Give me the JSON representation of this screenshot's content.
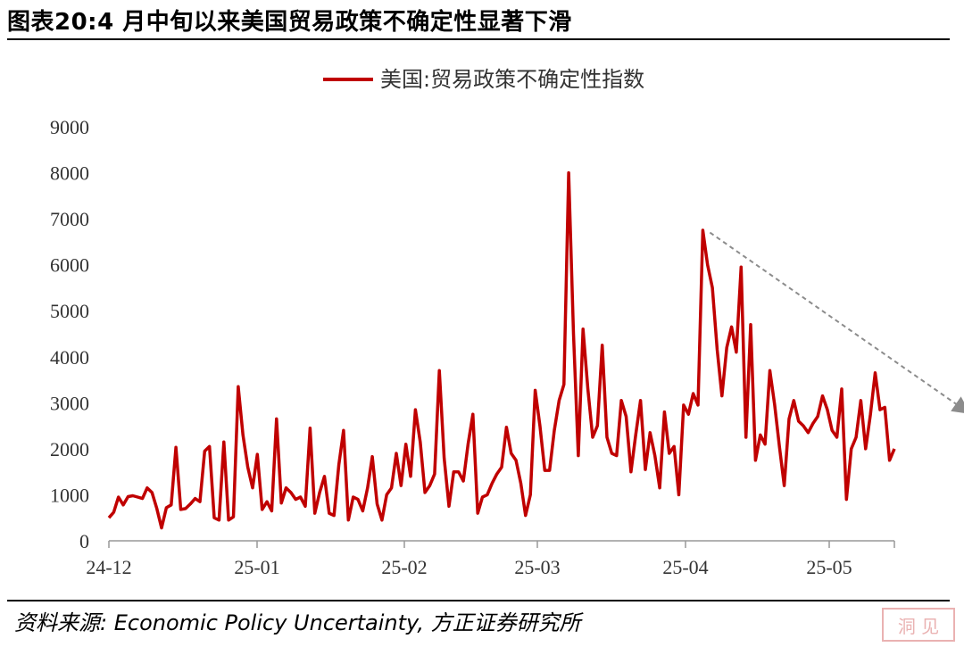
{
  "title": "图表20:4 月中旬以来美国贸易政策不确定性显著下滑",
  "source": "资料来源: Economic Policy Uncertainty, 方正证券研究所",
  "chart_data": {
    "type": "line",
    "ylim": [
      0,
      9000
    ],
    "yticks": [
      "0",
      "1000",
      "2000",
      "3000",
      "4000",
      "5000",
      "6000",
      "7000",
      "8000",
      "9000"
    ],
    "x_tick_labels": [
      "24-12",
      "25-01",
      "25-02",
      "25-03",
      "25-04",
      "25-05"
    ],
    "legend_position": "top-center",
    "series": [
      {
        "name": "美国:贸易政策不确定性指数",
        "color": "#c00000",
        "x_start": "2024-12-01",
        "values": [
          500,
          620,
          950,
          780,
          960,
          980,
          950,
          920,
          1150,
          1050,
          700,
          280,
          720,
          780,
          2030,
          680,
          700,
          800,
          920,
          850,
          1950,
          2050,
          500,
          450,
          2150,
          450,
          520,
          3350,
          2300,
          1600,
          1150,
          1880,
          680,
          850,
          650,
          2650,
          820,
          1150,
          1050,
          900,
          950,
          750,
          2450,
          600,
          1050,
          1400,
          600,
          550,
          1650,
          2400,
          450,
          950,
          900,
          650,
          1150,
          1830,
          800,
          450,
          1000,
          1150,
          1900,
          1200,
          2100,
          1400,
          2850,
          2150,
          1050,
          1200,
          1450,
          3700,
          1800,
          750,
          1500,
          1500,
          1300,
          2100,
          2750,
          600,
          950,
          1000,
          1250,
          1450,
          1600,
          2470,
          1900,
          1750,
          1250,
          550,
          1000,
          3270,
          2500,
          1530,
          1530,
          2400,
          3050,
          3400,
          8000,
          4500,
          1850,
          4600,
          3300,
          2250,
          2500,
          4250,
          2250,
          1900,
          1850,
          3050,
          2700,
          1500,
          2300,
          3050,
          1550,
          2350,
          1850,
          1150,
          2800,
          1900,
          2050,
          1000,
          2950,
          2750,
          3200,
          2950,
          6750,
          6000,
          5500,
          4150,
          3150,
          4200,
          4650,
          4100,
          5950,
          2250,
          4700,
          1750,
          2300,
          2100,
          3700,
          2950,
          2050,
          1200,
          2650,
          3050,
          2600,
          2500,
          2350,
          2550,
          2700,
          3150,
          2850,
          2400,
          2250,
          3300,
          900,
          2000,
          2250,
          3050,
          2000,
          2750,
          3650,
          2850,
          2900,
          1750,
          2000
        ]
      }
    ],
    "trend_arrow": {
      "from": [
        "2025-04-06",
        6700
      ],
      "to": [
        "2025-05-30",
        2800
      ],
      "style": "dashed",
      "color": "#8c8c8c"
    }
  }
}
